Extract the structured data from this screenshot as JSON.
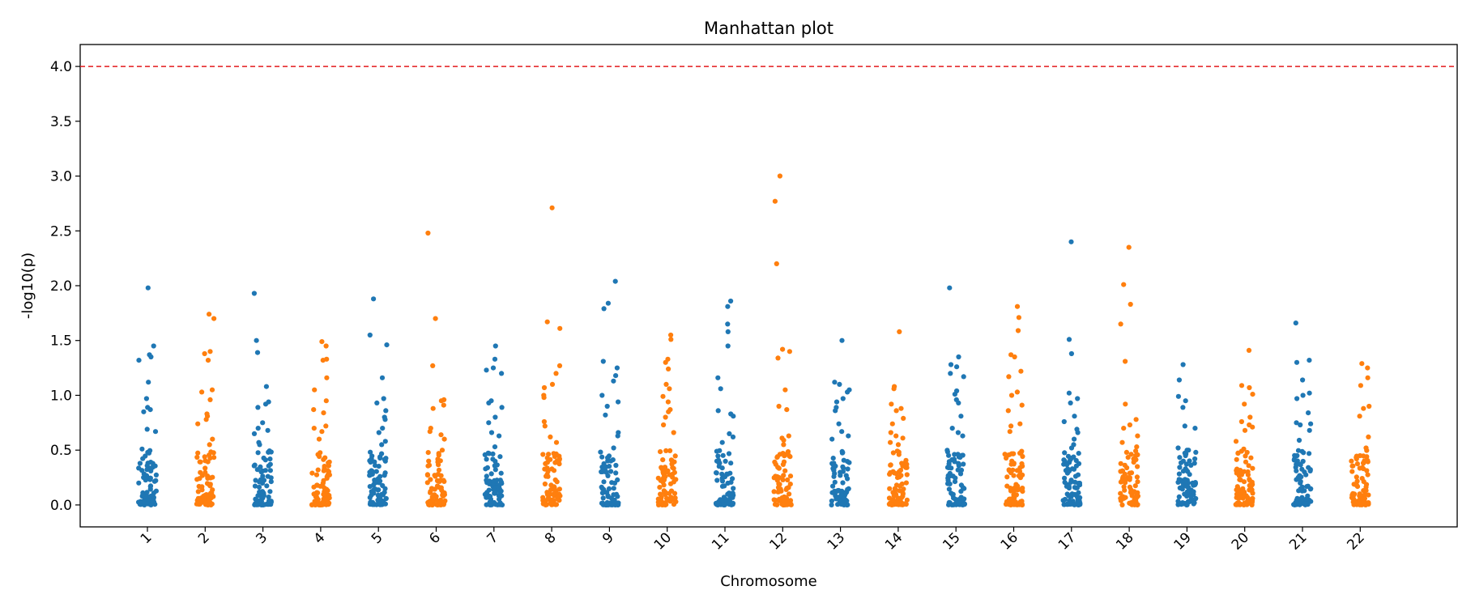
{
  "chart_data": {
    "type": "scatter",
    "title": "Manhattan plot",
    "xlabel": "Chromosome",
    "ylabel": "-log10(p)",
    "ylim": [
      -0.2,
      4.2
    ],
    "yticks": [
      "0.0",
      "0.5",
      "1.0",
      "1.5",
      "2.0",
      "2.5",
      "3.0",
      "3.5",
      "4.0"
    ],
    "threshold": {
      "value": 4.0,
      "color": "#e31a1c",
      "style": "dashed"
    },
    "grid": false,
    "colors": {
      "odd": "#1f77b4",
      "even": "#ff7f0e"
    },
    "categories": [
      "1",
      "2",
      "3",
      "4",
      "5",
      "6",
      "7",
      "8",
      "9",
      "10",
      "11",
      "12",
      "13",
      "14",
      "15",
      "16",
      "17",
      "18",
      "19",
      "20",
      "21",
      "22"
    ],
    "top_hits": [
      {
        "chromosome": "1",
        "values": [
          1.98,
          1.45,
          1.37,
          1.35,
          1.32,
          1.12,
          0.97,
          0.89,
          0.87,
          0.85,
          0.69,
          0.67,
          0.51,
          0.48
        ]
      },
      {
        "chromosome": "2",
        "values": [
          1.74,
          1.7,
          1.4,
          1.38,
          1.32,
          1.05,
          1.03,
          0.96,
          0.83,
          0.81,
          0.78,
          0.74,
          0.6,
          0.55
        ]
      },
      {
        "chromosome": "3",
        "values": [
          1.93,
          1.5,
          1.39,
          1.08,
          0.94,
          0.92,
          0.89,
          0.75,
          0.7,
          0.68,
          0.65,
          0.57,
          0.55
        ]
      },
      {
        "chromosome": "4",
        "values": [
          1.49,
          1.45,
          1.33,
          1.32,
          1.16,
          1.05,
          0.95,
          0.87,
          0.84,
          0.72,
          0.7,
          0.67,
          0.6
        ]
      },
      {
        "chromosome": "5",
        "values": [
          1.88,
          1.55,
          1.46,
          1.16,
          0.97,
          0.93,
          0.86,
          0.8,
          0.78,
          0.7,
          0.66,
          0.58,
          0.55
        ]
      },
      {
        "chromosome": "6",
        "values": [
          2.48,
          1.7,
          1.27,
          0.96,
          0.95,
          0.91,
          0.88,
          0.7,
          0.67,
          0.64,
          0.6,
          0.5,
          0.47
        ]
      },
      {
        "chromosome": "7",
        "values": [
          1.45,
          1.33,
          1.25,
          1.23,
          1.2,
          0.95,
          0.93,
          0.89,
          0.8,
          0.75,
          0.66,
          0.63,
          0.53
        ]
      },
      {
        "chromosome": "8",
        "values": [
          2.71,
          1.67,
          1.61,
          1.27,
          1.2,
          1.1,
          1.07,
          1.0,
          0.98,
          0.76,
          0.72,
          0.62,
          0.57
        ]
      },
      {
        "chromosome": "9",
        "values": [
          2.04,
          1.84,
          1.79,
          1.31,
          1.25,
          1.18,
          1.13,
          1.0,
          0.94,
          0.9,
          0.82,
          0.66,
          0.63,
          0.52
        ]
      },
      {
        "chromosome": "10",
        "values": [
          1.55,
          1.51,
          1.33,
          1.3,
          1.24,
          1.1,
          1.06,
          0.99,
          0.94,
          0.87,
          0.85,
          0.8,
          0.73,
          0.66
        ]
      },
      {
        "chromosome": "11",
        "values": [
          1.86,
          1.81,
          1.65,
          1.58,
          1.45,
          1.16,
          1.06,
          0.86,
          0.83,
          0.81,
          0.65,
          0.62,
          0.57
        ]
      },
      {
        "chromosome": "12",
        "values": [
          3.0,
          2.77,
          2.2,
          1.42,
          1.4,
          1.34,
          1.05,
          0.9,
          0.87,
          0.63,
          0.61,
          0.59,
          0.55
        ]
      },
      {
        "chromosome": "13",
        "values": [
          1.5,
          1.12,
          1.1,
          1.05,
          1.03,
          0.97,
          0.94,
          0.89,
          0.86,
          0.74,
          0.67,
          0.63,
          0.6
        ]
      },
      {
        "chromosome": "14",
        "values": [
          1.58,
          1.08,
          1.06,
          0.92,
          0.88,
          0.86,
          0.79,
          0.74,
          0.66,
          0.63,
          0.61,
          0.57,
          0.55
        ]
      },
      {
        "chromosome": "15",
        "values": [
          1.98,
          1.35,
          1.28,
          1.26,
          1.2,
          1.17,
          1.04,
          1.01,
          0.96,
          0.93,
          0.81,
          0.7,
          0.66,
          0.63
        ]
      },
      {
        "chromosome": "16",
        "values": [
          1.81,
          1.71,
          1.59,
          1.37,
          1.35,
          1.22,
          1.17,
          1.03,
          1.0,
          0.91,
          0.86,
          0.74,
          0.72,
          0.67
        ]
      },
      {
        "chromosome": "17",
        "values": [
          2.4,
          1.51,
          1.38,
          1.02,
          0.97,
          0.93,
          0.81,
          0.76,
          0.69,
          0.66,
          0.6,
          0.55,
          0.52
        ]
      },
      {
        "chromosome": "18",
        "values": [
          2.35,
          2.01,
          1.83,
          1.65,
          1.31,
          0.92,
          0.78,
          0.73,
          0.7,
          0.63,
          0.57,
          0.53,
          0.48
        ]
      },
      {
        "chromosome": "19",
        "values": [
          1.28,
          1.14,
          0.99,
          0.95,
          0.89,
          0.72,
          0.7,
          0.52,
          0.5,
          0.45,
          0.42,
          0.4,
          0.38
        ]
      },
      {
        "chromosome": "20",
        "values": [
          1.41,
          1.09,
          1.07,
          1.01,
          0.92,
          0.8,
          0.76,
          0.73,
          0.71,
          0.68,
          0.58,
          0.51,
          0.49
        ]
      },
      {
        "chromosome": "21",
        "values": [
          1.66,
          1.32,
          1.3,
          1.14,
          1.02,
          1.0,
          0.97,
          0.84,
          0.75,
          0.74,
          0.73,
          0.68,
          0.59
        ]
      },
      {
        "chromosome": "22",
        "values": [
          1.29,
          1.25,
          1.16,
          1.09,
          0.9,
          0.88,
          0.81,
          0.62,
          0.52,
          0.45,
          0.42,
          0.4,
          0.38
        ]
      }
    ],
    "background_points_per_chromosome": 70,
    "background_range": [
      0.0,
      0.5
    ]
  }
}
